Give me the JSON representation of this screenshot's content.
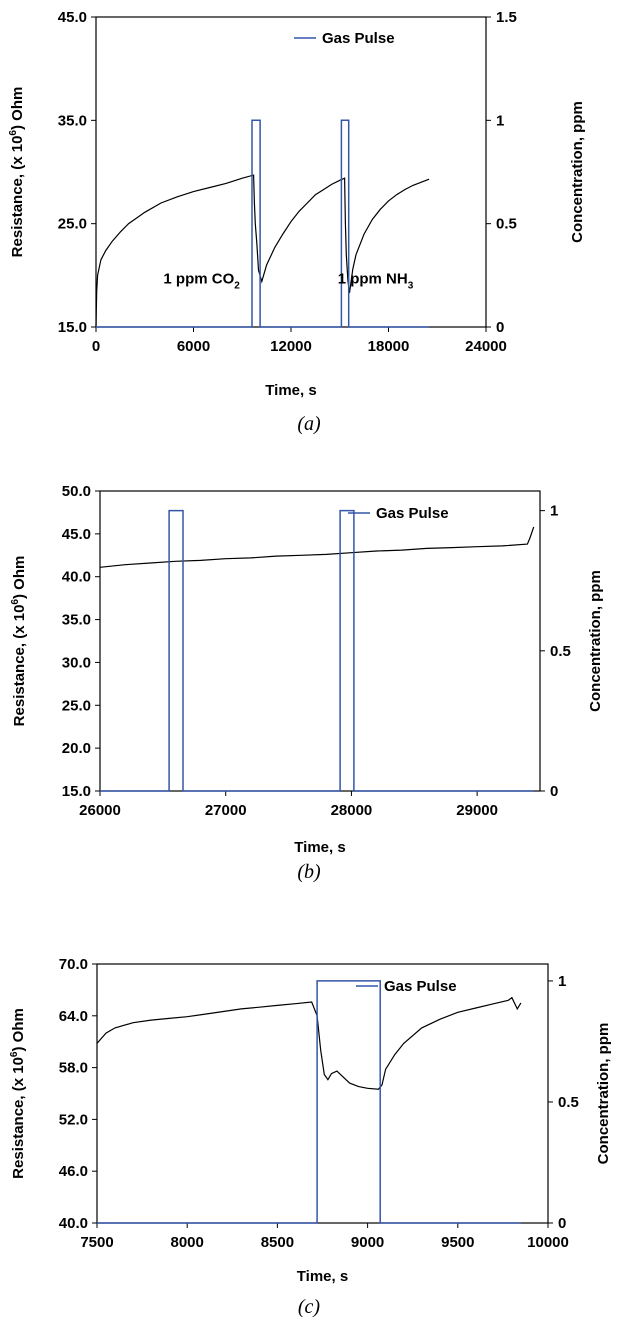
{
  "chart_data": [
    {
      "type": "line",
      "caption": "(a)",
      "xlabel": "Time, s",
      "ylabel_left_parts": [
        "Resistance, (x 10",
        "6",
        ") Ohm"
      ],
      "ylabel_right": "Concentration, ppm",
      "xlim": [
        0,
        24000
      ],
      "ylim_left": [
        15,
        45
      ],
      "ylim_right": [
        0,
        1.5
      ],
      "x_ticks": [
        0,
        6000,
        12000,
        18000,
        24000
      ],
      "x_tick_labels": [
        "0",
        "6000",
        "12000",
        "18000",
        "24000"
      ],
      "y_left_ticks": [
        15,
        25,
        35,
        45
      ],
      "y_left_tick_labels": [
        "15.0",
        "25.0",
        "35.0",
        "45.0"
      ],
      "y_right_ticks": [
        0,
        0.5,
        1,
        1.5
      ],
      "y_right_tick_labels": [
        "0",
        "0.5",
        "1",
        "1.5"
      ],
      "legend": {
        "label": "Gas Pulse",
        "position": "top-right",
        "color": "#3355aa"
      },
      "annotations": [
        {
          "parts": [
            "1 ppm CO",
            "2",
            ""
          ],
          "x": 6500,
          "y": 19.2
        },
        {
          "parts": [
            "1 ppm NH",
            "3",
            ""
          ],
          "x": 17200,
          "y": 19.2
        }
      ],
      "series": [
        {
          "name": "Resistance",
          "axis": "left",
          "color": "#000000",
          "x": [
            0,
            40,
            100,
            300,
            600,
            1000,
            1500,
            2000,
            3000,
            4000,
            5000,
            6000,
            7000,
            8000,
            9000,
            9700,
            9750,
            9800,
            9900,
            10000,
            10200,
            10500,
            11000,
            11500,
            12000,
            12500,
            13000,
            13500,
            14000,
            14500,
            15000,
            15300,
            15350,
            15400,
            15500,
            15600,
            15700,
            15800,
            16000,
            16500,
            17000,
            17500,
            18000,
            18500,
            19000,
            19500,
            20000,
            20500
          ],
          "y": [
            15.0,
            18.5,
            20.0,
            21.5,
            22.4,
            23.3,
            24.2,
            25.0,
            26.1,
            27.0,
            27.6,
            28.1,
            28.5,
            28.9,
            29.4,
            29.7,
            27.0,
            25.0,
            23.0,
            20.5,
            19.4,
            21.0,
            22.7,
            24.0,
            25.2,
            26.2,
            27.0,
            27.8,
            28.3,
            28.8,
            29.2,
            29.4,
            25.0,
            22.0,
            19.5,
            18.3,
            19.4,
            20.6,
            22.0,
            24.0,
            25.4,
            26.4,
            27.2,
            27.8,
            28.3,
            28.7,
            29.0,
            29.3
          ]
        },
        {
          "name": "Gas Pulse",
          "axis": "right",
          "color": "#3355aa",
          "x": [
            0,
            9600,
            9600,
            10100,
            10100,
            15100,
            15100,
            15550,
            15550,
            20500
          ],
          "y": [
            0,
            0,
            1,
            1,
            0,
            0,
            1,
            1,
            0,
            0
          ]
        }
      ]
    },
    {
      "type": "line",
      "caption": "(b)",
      "xlabel": "Time, s",
      "ylabel_left_parts": [
        "Resistance, (x 10",
        "6",
        ") Ohm"
      ],
      "ylabel_right": "Concentration, ppm",
      "xlim": [
        26000,
        29500
      ],
      "ylim_left": [
        15,
        50
      ],
      "ylim_right": [
        0,
        1.07
      ],
      "x_ticks": [
        26000,
        27000,
        28000,
        29000
      ],
      "x_tick_labels": [
        "26000",
        "27000",
        "28000",
        "29000"
      ],
      "y_left_ticks": [
        15,
        20,
        25,
        30,
        35,
        40,
        45,
        50
      ],
      "y_left_tick_labels": [
        "15.0",
        "20.0",
        "25.0",
        "30.0",
        "35.0",
        "40.0",
        "45.0",
        "50.0"
      ],
      "y_right_ticks": [
        0,
        0.5,
        1
      ],
      "y_right_tick_labels": [
        "0",
        "0.5",
        "1"
      ],
      "legend": {
        "label": "Gas Pulse",
        "position": "top-right",
        "color": "#3355aa"
      },
      "annotations": [],
      "series": [
        {
          "name": "Resistance",
          "axis": "left",
          "color": "#000000",
          "x": [
            26000,
            26200,
            26400,
            26600,
            26800,
            27000,
            27200,
            27400,
            27600,
            27800,
            28000,
            28200,
            28400,
            28600,
            28800,
            29000,
            29200,
            29400,
            29420,
            29450
          ],
          "y": [
            41.1,
            41.4,
            41.6,
            41.8,
            41.9,
            42.1,
            42.2,
            42.4,
            42.5,
            42.6,
            42.8,
            43.0,
            43.1,
            43.3,
            43.4,
            43.5,
            43.6,
            43.8,
            44.5,
            45.8
          ]
        },
        {
          "name": "Gas Pulse",
          "axis": "right",
          "color": "#3355aa",
          "x": [
            26000,
            26550,
            26550,
            26660,
            26660,
            27910,
            27910,
            28020,
            28020,
            29450
          ],
          "y": [
            0,
            0,
            1,
            1,
            0,
            0,
            1,
            1,
            0,
            0
          ]
        }
      ]
    },
    {
      "type": "line",
      "caption": "(c)",
      "xlabel": "Time, s",
      "ylabel_left_parts": [
        "Resistance, (x 10",
        "6",
        ") Ohm"
      ],
      "ylabel_right": "Concentration, ppm",
      "xlim": [
        7500,
        10000
      ],
      "ylim_left": [
        40,
        70
      ],
      "ylim_right": [
        0,
        1.07
      ],
      "x_ticks": [
        7500,
        8000,
        8500,
        9000,
        9500,
        10000
      ],
      "x_tick_labels": [
        "7500",
        "8000",
        "8500",
        "9000",
        "9500",
        "10000"
      ],
      "y_left_ticks": [
        40,
        46,
        52,
        58,
        64,
        70
      ],
      "y_left_tick_labels": [
        "40.0",
        "46.0",
        "52.0",
        "58.0",
        "64.0",
        "70.0"
      ],
      "y_right_ticks": [
        0,
        0.5,
        1
      ],
      "y_right_tick_labels": [
        "0",
        "0.5",
        "1"
      ],
      "legend": {
        "label": "Gas Pulse",
        "position": "top-right",
        "color": "#3355aa"
      },
      "annotations": [],
      "series": [
        {
          "name": "Resistance",
          "axis": "left",
          "color": "#000000",
          "x": [
            7500,
            7550,
            7600,
            7700,
            7800,
            7900,
            8000,
            8100,
            8200,
            8300,
            8400,
            8500,
            8600,
            8690,
            8720,
            8740,
            8760,
            8780,
            8800,
            8830,
            8860,
            8900,
            8950,
            9000,
            9060,
            9080,
            9100,
            9150,
            9200,
            9300,
            9400,
            9500,
            9600,
            9700,
            9780,
            9800,
            9830,
            9850
          ],
          "y": [
            60.8,
            62.0,
            62.6,
            63.2,
            63.5,
            63.7,
            63.9,
            64.2,
            64.5,
            64.8,
            65.0,
            65.2,
            65.4,
            65.6,
            64.0,
            60.0,
            57.2,
            56.6,
            57.3,
            57.6,
            57.0,
            56.2,
            55.8,
            55.6,
            55.5,
            56.0,
            57.8,
            59.5,
            60.8,
            62.6,
            63.6,
            64.4,
            64.9,
            65.4,
            65.8,
            66.1,
            64.8,
            65.5
          ]
        },
        {
          "name": "Gas Pulse",
          "axis": "right",
          "color": "#3355aa",
          "x": [
            7500,
            8720,
            8720,
            9070,
            9070,
            9850
          ],
          "y": [
            0,
            0,
            1,
            1,
            0,
            0
          ]
        }
      ]
    }
  ]
}
